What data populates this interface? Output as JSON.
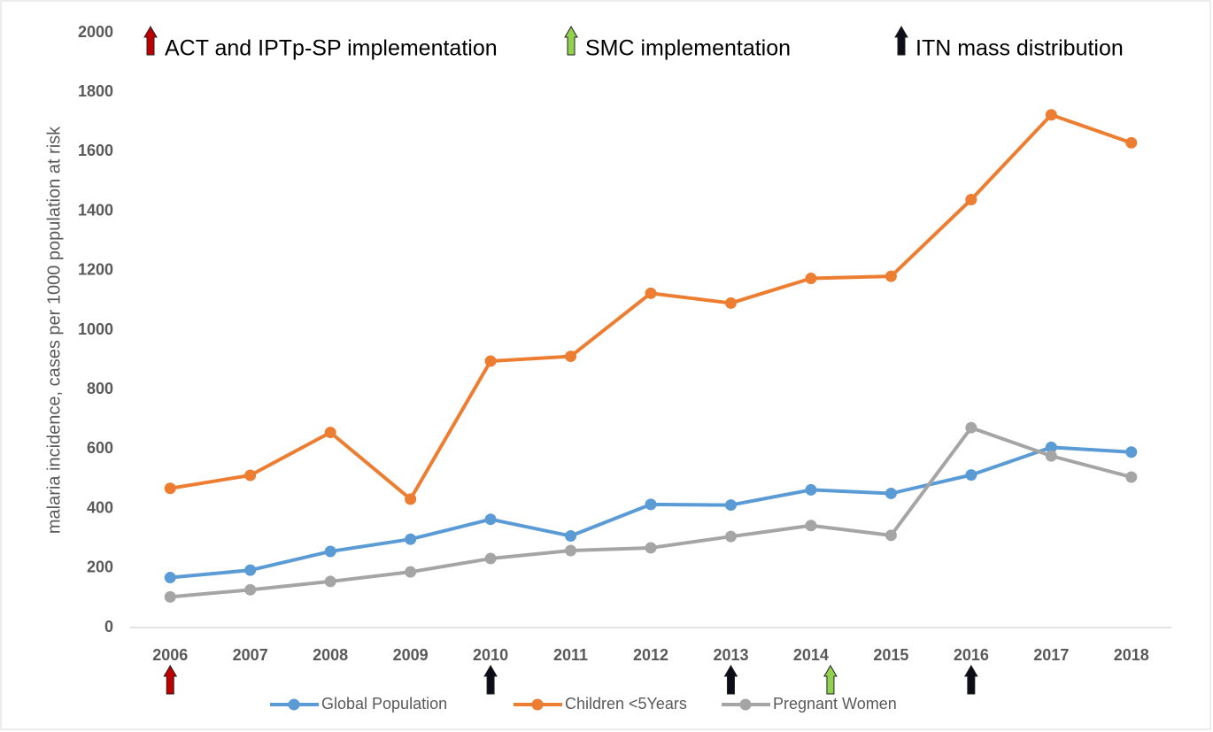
{
  "chart_data": {
    "type": "line",
    "y_label": "malaria incidence, cases per 1000 population at risk",
    "categories": [
      "2006",
      "2007",
      "2008",
      "2009",
      "2010",
      "2011",
      "2012",
      "2013",
      "2014",
      "2015",
      "2016",
      "2017",
      "2018"
    ],
    "series": [
      {
        "name": "Global Population",
        "color": "#5b9bd5",
        "values": [
          168,
          193,
          256,
          297,
          364,
          308,
          414,
          412,
          463,
          451,
          513,
          606,
          590
        ]
      },
      {
        "name": "Children <5Years",
        "color": "#ed7d31",
        "values": [
          468,
          512,
          656,
          432,
          896,
          912,
          1124,
          1091,
          1174,
          1181,
          1439,
          1724,
          1630
        ]
      },
      {
        "name": "Pregnant Women",
        "color": "#a5a5a5",
        "values": [
          103,
          127,
          155,
          187,
          232,
          259,
          268,
          306,
          343,
          310,
          672,
          577,
          506
        ]
      }
    ],
    "annotations": [
      {
        "text": "ACT and IPTp-SP implementation",
        "color": "#c00000",
        "years": [
          "2006"
        ]
      },
      {
        "text": "SMC implementation",
        "color": "#92d050",
        "years": [
          "2014"
        ]
      },
      {
        "text": "ITN mass distribution",
        "color": "#0d0d1a",
        "years": [
          "2010",
          "2013",
          "2016"
        ]
      }
    ],
    "ylim": [
      0,
      2000
    ],
    "yticks": [
      0,
      200,
      400,
      600,
      800,
      1000,
      1200,
      1400,
      1600,
      1800,
      2000
    ],
    "grid": false,
    "legend": "bottom"
  }
}
